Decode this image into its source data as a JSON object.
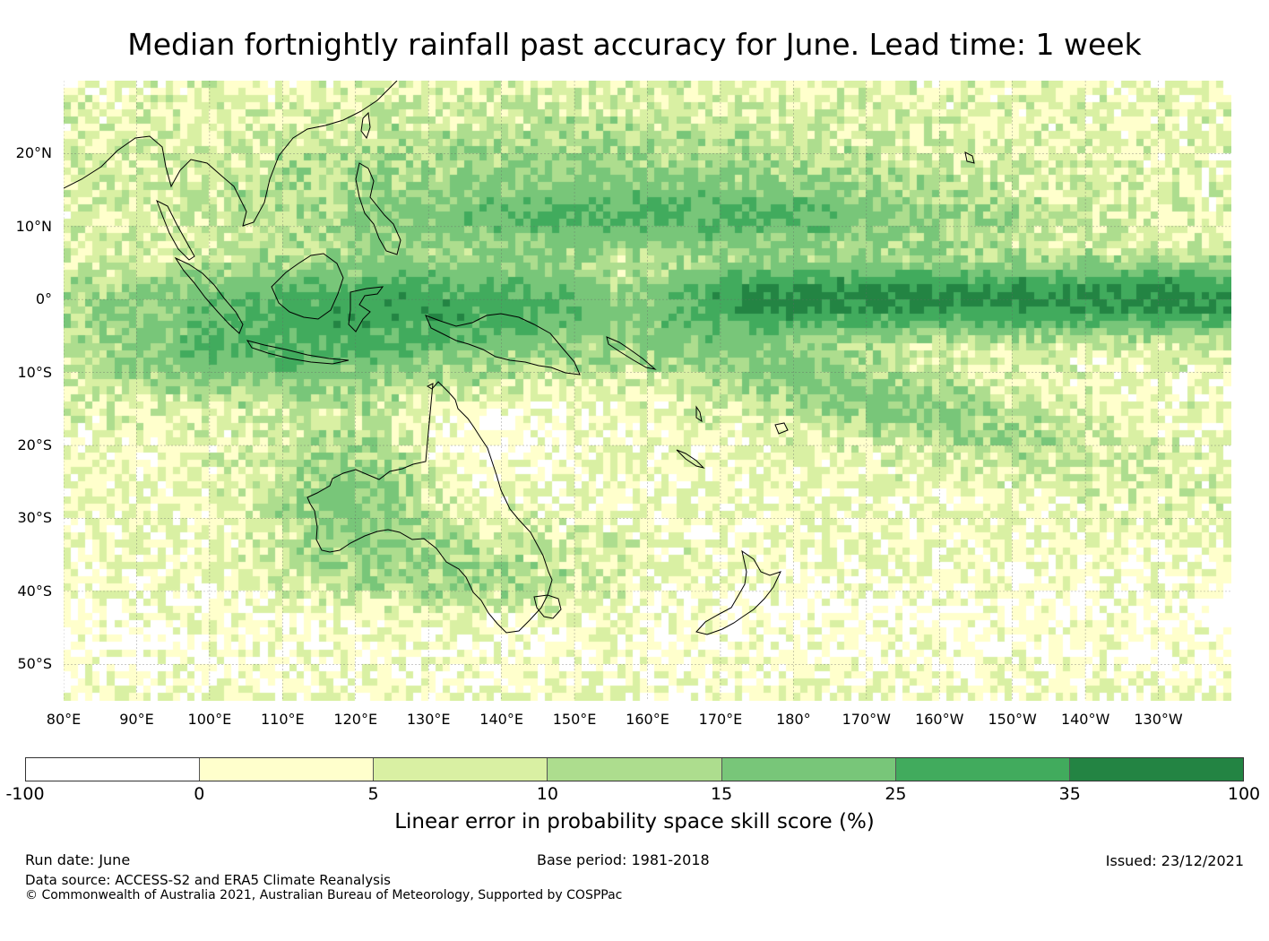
{
  "title": "Median fortnightly rainfall past accuracy for June. Lead time: 1 week",
  "map": {
    "type": "heatmap",
    "projection": "plate carree",
    "lon_range": [
      80,
      240
    ],
    "lat_range": [
      -55,
      30
    ],
    "lat_ticks": [
      {
        "value": 20,
        "label": "20°N"
      },
      {
        "value": 10,
        "label": "10°N"
      },
      {
        "value": 0,
        "label": "0°"
      },
      {
        "value": -10,
        "label": "10°S"
      },
      {
        "value": -20,
        "label": "20°S"
      },
      {
        "value": -30,
        "label": "30°S"
      },
      {
        "value": -40,
        "label": "40°S"
      },
      {
        "value": -50,
        "label": "50°S"
      }
    ],
    "lon_ticks": [
      {
        "value": 80,
        "label": "80°E"
      },
      {
        "value": 90,
        "label": "90°E"
      },
      {
        "value": 100,
        "label": "100°E"
      },
      {
        "value": 110,
        "label": "110°E"
      },
      {
        "value": 120,
        "label": "120°E"
      },
      {
        "value": 130,
        "label": "130°E"
      },
      {
        "value": 140,
        "label": "140°E"
      },
      {
        "value": 150,
        "label": "150°E"
      },
      {
        "value": 160,
        "label": "160°E"
      },
      {
        "value": 170,
        "label": "170°E"
      },
      {
        "value": 180,
        "label": "180°"
      },
      {
        "value": 190,
        "label": "170°W"
      },
      {
        "value": 200,
        "label": "160°W"
      },
      {
        "value": 210,
        "label": "150°W"
      },
      {
        "value": 220,
        "label": "140°W"
      },
      {
        "value": 230,
        "label": "130°W"
      }
    ],
    "grid": true
  },
  "colorbar": {
    "bounds": [
      "-100",
      "0",
      "5",
      "10",
      "15",
      "25",
      "35",
      "100"
    ],
    "colors": [
      "#ffffff",
      "#ffffcc",
      "#d9f0a3",
      "#addd8e",
      "#78c679",
      "#41ab5d",
      "#238443"
    ],
    "label": "Linear error in probability space skill score (%)"
  },
  "footer": {
    "run_date": "Run date: June",
    "base_period": "Base period: 1981-2018",
    "issued": "Issued: 23/12/2021",
    "data_source": "Data source: ACCESS-S2 and ERA5 Climate Reanalysis",
    "copyright": "© Commonwealth of Australia 2021, Australian Bureau of Meteorology, Supported by COSPPac"
  }
}
